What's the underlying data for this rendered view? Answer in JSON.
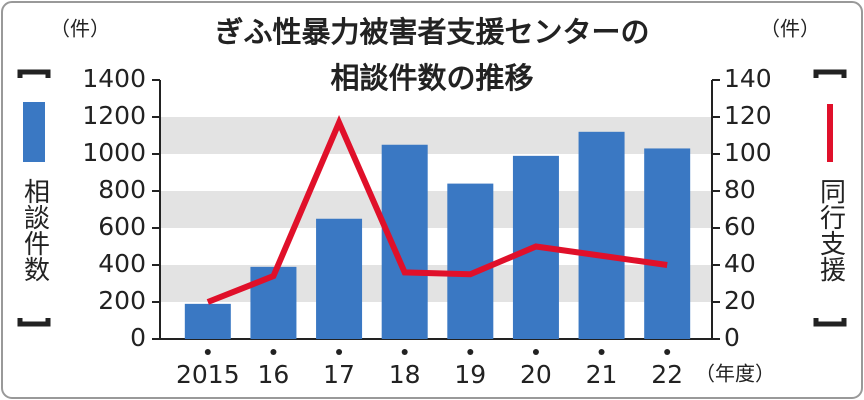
{
  "chart_data": {
    "type": "bar",
    "title": [
      "ぎふ性暴力被害者支援センターの",
      "相談件数の推移"
    ],
    "y_unit": "（件）",
    "y2_unit": "（件）",
    "x_unit": "（年度）",
    "categories": [
      "2015",
      "16",
      "17",
      "18",
      "19",
      "20",
      "21",
      "22"
    ],
    "series": [
      {
        "name": "相談件数",
        "type": "bar",
        "color": "#3a78c3",
        "values": [
          190,
          390,
          650,
          1050,
          840,
          990,
          1120,
          1030
        ]
      },
      {
        "name": "同行支援",
        "type": "line",
        "axis": "y2",
        "color": "#e0102a",
        "values": [
          20,
          34,
          117,
          36,
          35,
          50,
          45,
          40
        ]
      }
    ],
    "ylim": [
      0,
      1400
    ],
    "yticks": [
      0,
      200,
      400,
      600,
      800,
      1000,
      1200,
      1400
    ],
    "y2lim": [
      0,
      140
    ],
    "y2ticks": [
      0,
      20,
      40,
      60,
      80,
      100,
      120,
      140
    ],
    "grid": "alternate-bands"
  }
}
